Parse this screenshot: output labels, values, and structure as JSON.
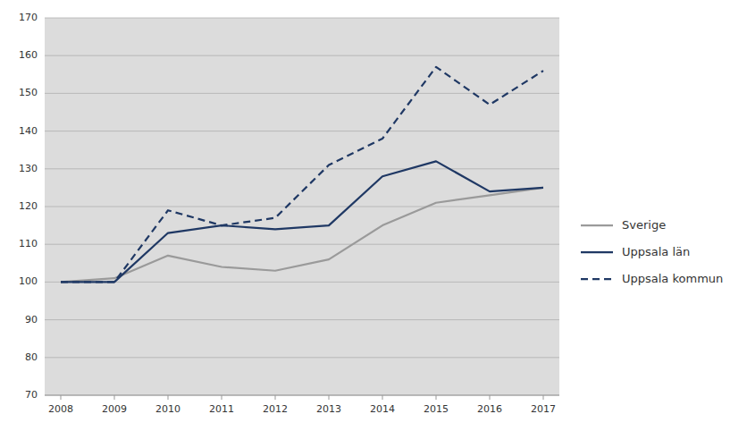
{
  "chart_data": {
    "type": "line",
    "x": [
      2008,
      2009,
      2010,
      2011,
      2012,
      2013,
      2014,
      2015,
      2016,
      2017
    ],
    "series": [
      {
        "name": "Sverige",
        "color": "#9a9a9a",
        "line_style": "solid",
        "values": [
          100,
          101,
          107,
          104,
          103,
          106,
          115,
          121,
          123,
          125
        ]
      },
      {
        "name": "Uppsala län",
        "color": "#1f3864",
        "line_style": "solid",
        "values": [
          100,
          100,
          113,
          115,
          114,
          115,
          128,
          132,
          124,
          125
        ]
      },
      {
        "name": "Uppsala kommun",
        "color": "#1f3864",
        "line_style": "dashed",
        "values": [
          100,
          100,
          119,
          115,
          117,
          131,
          138,
          157,
          147,
          156
        ]
      }
    ],
    "xlim": [
      2007.7,
      2017.3
    ],
    "xticks": [
      2008,
      2009,
      2010,
      2011,
      2012,
      2013,
      2014,
      2015,
      2016,
      2017
    ],
    "ylim": [
      70,
      170
    ],
    "yticks": [
      70,
      80,
      90,
      100,
      110,
      120,
      130,
      140,
      150,
      160,
      170
    ],
    "grid": true,
    "legend": "right"
  }
}
